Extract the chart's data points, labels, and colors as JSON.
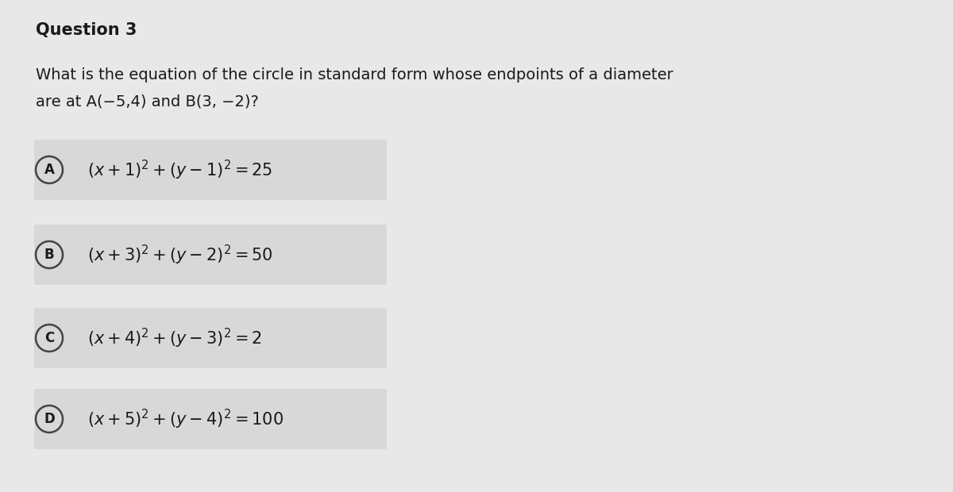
{
  "title": "Question 3",
  "question_line1": "What is the equation of the circle in standard form whose endpoints of a diameter",
  "question_line2": "are at A(−5,4) and B(3, −2)?",
  "options": [
    {
      "label": "A",
      "text": "$(x+1)^2+(y-1)^2=25$"
    },
    {
      "label": "B",
      "text": "$(x+3)^2+(y-2)^2=50$"
    },
    {
      "label": "C",
      "text": "$(x+4)^2+(y-3)^2=2$"
    },
    {
      "label": "D",
      "text": "$(x+5)^2+(y-4)^2=100$"
    }
  ],
  "bg_color": "#e8e8e8",
  "option_box_color": "#d0d0d0",
  "title_fontsize": 15,
  "question_fontsize": 14,
  "option_fontsize": 15,
  "label_fontsize": 12,
  "text_color": "#1a1a1a",
  "circle_edge_color": "#444444"
}
